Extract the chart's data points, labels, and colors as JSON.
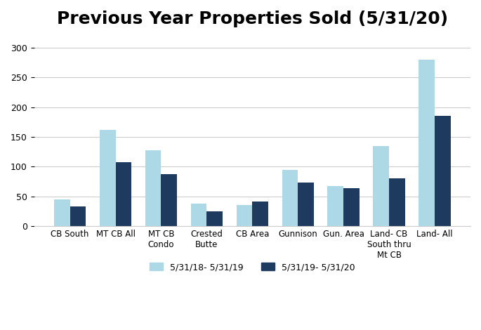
{
  "title": "Previous Year Properties Sold (5/31/20)",
  "categories": [
    "CB South",
    "MT CB All",
    "MT CB\nCondo",
    "Crested\nButte",
    "CB Area",
    "Gunnison",
    "Gun. Area",
    "Land- CB\nSouth thru\nMt CB",
    "Land- All"
  ],
  "series1_label": "5/31/18- 5/31/19",
  "series2_label": "5/31/19- 5/31/20",
  "series1_values": [
    45,
    162,
    128,
    38,
    36,
    95,
    67,
    135,
    279
  ],
  "series2_values": [
    33,
    108,
    88,
    25,
    42,
    73,
    64,
    80,
    185
  ],
  "color1": "#add8e6",
  "color2": "#1f3a5f",
  "ylim": [
    0,
    320
  ],
  "yticks": [
    0,
    50,
    100,
    150,
    200,
    250,
    300
  ],
  "background_color": "#ffffff",
  "title_fontsize": 18,
  "bar_width": 0.35
}
